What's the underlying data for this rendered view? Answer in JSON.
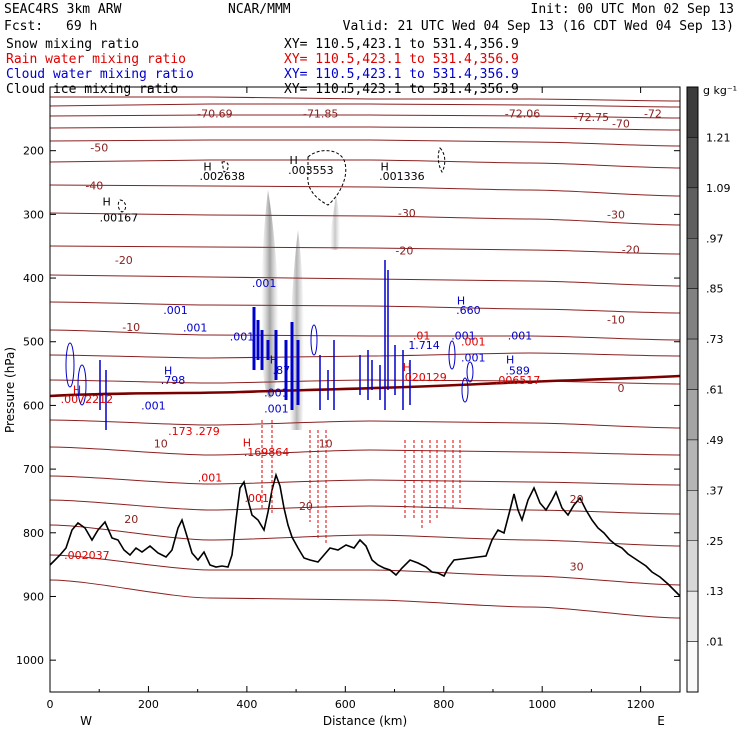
{
  "header": {
    "model": "SEAC4RS  3km ARW",
    "org": "NCAR/MMM",
    "init": "Init: 00 UTC Mon 02 Sep 13",
    "fcst_label": "Fcst:",
    "fcst_value": "69 h",
    "valid": "Valid: 21 UTC Wed 04 Sep 13 (16 CDT Wed 04 Sep 13)"
  },
  "fields": [
    {
      "name": "Snow mixing ratio",
      "xy": "XY= 110.5,423.1 to 531.4,356.9",
      "color": "#000000"
    },
    {
      "name": "Rain water mixing ratio",
      "xy": "XY= 110.5,423.1 to 531.4,356.9",
      "color": "#e00000"
    },
    {
      "name": "Cloud water mixing ratio",
      "xy": "XY= 110.5,423.1 to 531.4,356.9",
      "color": "#0000cc"
    },
    {
      "name": "Cloud ice mixing ratio",
      "xy": "XY= 110.5,423.1 to 531.4,356.9",
      "color": "#000000"
    }
  ],
  "chart_data": {
    "type": "cross-section",
    "xlabel": "Distance (km)",
    "ylabel": "Pressure (hPa)",
    "xlim": [
      0,
      1280
    ],
    "ylim": [
      1050,
      100
    ],
    "x_ticks": [
      "0",
      "200",
      "400",
      "600",
      "800",
      "1000",
      "1200"
    ],
    "y_ticks": [
      "200",
      "300",
      "400",
      "500",
      "600",
      "700",
      "800",
      "900",
      "1000"
    ],
    "left_end": "W",
    "right_end": "E",
    "colorbar": {
      "unit": "g kg⁻¹",
      "ticks": [
        "1.21",
        "1.09",
        ".97",
        ".85",
        ".73",
        ".61",
        ".49",
        ".37",
        ".25",
        ".13",
        ".01"
      ]
    },
    "temperature_labels": [
      {
        "text": "-50",
        "x": 100,
        "p": 195
      },
      {
        "text": "-40",
        "x": 90,
        "p": 255
      },
      {
        "text": "-30",
        "x": 725,
        "p": 298
      },
      {
        "text": "-30",
        "x": 1150,
        "p": 300
      },
      {
        "text": "-20",
        "x": 150,
        "p": 372
      },
      {
        "text": "-20",
        "x": 720,
        "p": 357
      },
      {
        "text": "-20",
        "x": 1180,
        "p": 355
      },
      {
        "text": "-10",
        "x": 165,
        "p": 477
      },
      {
        "text": "-10",
        "x": 1150,
        "p": 465
      },
      {
        "text": "0",
        "x": 1160,
        "p": 573
      },
      {
        "text": "10",
        "x": 225,
        "p": 660
      },
      {
        "text": "10",
        "x": 560,
        "p": 660
      },
      {
        "text": "20",
        "x": 165,
        "p": 778
      },
      {
        "text": "20",
        "x": 520,
        "p": 758
      },
      {
        "text": "20",
        "x": 1070,
        "p": 747
      },
      {
        "text": "30",
        "x": 1070,
        "p": 853
      },
      {
        "text": "-70",
        "x": 1160,
        "p": 157
      },
      {
        "text": "-72.75",
        "x": 1100,
        "p": 147
      },
      {
        "text": "-72",
        "x": 1225,
        "p": 142
      },
      {
        "text": "-70.69",
        "x": 335,
        "p": 142
      },
      {
        "text": "-71.85",
        "x": 550,
        "p": 142
      },
      {
        "text": "-72.06",
        "x": 960,
        "p": 142
      }
    ],
    "max_labels": [
      {
        "text": "H",
        "x": 115,
        "p": 280,
        "color": "#000000"
      },
      {
        "text": ".00167",
        "x": 140,
        "p": 305,
        "color": "#000000"
      },
      {
        "text": "H",
        "x": 320,
        "p": 225,
        "color": "#000000"
      },
      {
        "text": ".002638",
        "x": 350,
        "p": 240,
        "color": "#000000"
      },
      {
        "text": "H",
        "x": 495,
        "p": 215,
        "color": "#000000"
      },
      {
        "text": ".003553",
        "x": 530,
        "p": 230,
        "color": "#000000"
      },
      {
        "text": "H",
        "x": 680,
        "p": 225,
        "color": "#000000"
      },
      {
        "text": ".001336",
        "x": 715,
        "p": 240,
        "color": "#000000"
      },
      {
        "text": "H",
        "x": 55,
        "p": 575,
        "color": "#e00000"
      },
      {
        "text": ".0072212",
        "x": 75,
        "p": 590,
        "color": "#e00000"
      },
      {
        "text": ".001",
        "x": 255,
        "p": 450,
        "color": "#0000cc"
      },
      {
        "text": ".001",
        "x": 295,
        "p": 478,
        "color": "#0000cc"
      },
      {
        "text": "H",
        "x": 240,
        "p": 545,
        "color": "#0000cc"
      },
      {
        "text": ".798",
        "x": 250,
        "p": 560,
        "color": "#0000cc"
      },
      {
        "text": ".001",
        "x": 210,
        "p": 600,
        "color": "#0000cc"
      },
      {
        "text": ".001",
        "x": 390,
        "p": 492,
        "color": "#0000cc"
      },
      {
        "text": ".001",
        "x": 435,
        "p": 408,
        "color": "#0000cc"
      },
      {
        "text": "H",
        "x": 455,
        "p": 528,
        "color": "#0000cc"
      },
      {
        "text": ".87",
        "x": 470,
        "p": 544,
        "color": "#0000cc"
      },
      {
        "text": ".001",
        "x": 460,
        "p": 580,
        "color": "#0000cc"
      },
      {
        "text": ".001",
        "x": 460,
        "p": 605,
        "color": "#0000cc"
      },
      {
        "text": ".173",
        "x": 265,
        "p": 640,
        "color": "#e00000"
      },
      {
        "text": ".279",
        "x": 320,
        "p": 640,
        "color": "#e00000"
      },
      {
        "text": "H",
        "x": 400,
        "p": 658,
        "color": "#e00000"
      },
      {
        "text": ".169864",
        "x": 440,
        "p": 673,
        "color": "#e00000"
      },
      {
        "text": ".001",
        "x": 325,
        "p": 713,
        "color": "#e00000"
      },
      {
        "text": ".001",
        "x": 420,
        "p": 745,
        "color": "#e00000"
      },
      {
        "text": ".01",
        "x": 755,
        "p": 490,
        "color": "#e00000"
      },
      {
        "text": "1.714",
        "x": 760,
        "p": 505,
        "color": "#0000cc"
      },
      {
        "text": "H",
        "x": 725,
        "p": 540,
        "color": "#e00000"
      },
      {
        "text": ".020129",
        "x": 760,
        "p": 555,
        "color": "#e00000"
      },
      {
        "text": "H",
        "x": 835,
        "p": 435,
        "color": "#0000cc"
      },
      {
        "text": ".660",
        "x": 850,
        "p": 450,
        "color": "#0000cc"
      },
      {
        "text": ".001",
        "x": 840,
        "p": 490,
        "color": "#0000cc"
      },
      {
        "text": ".001",
        "x": 860,
        "p": 500,
        "color": "#e00000"
      },
      {
        "text": ".001",
        "x": 860,
        "p": 525,
        "color": "#0000cc"
      },
      {
        "text": ".001",
        "x": 955,
        "p": 490,
        "color": "#0000cc"
      },
      {
        "text": "H",
        "x": 935,
        "p": 528,
        "color": "#0000cc"
      },
      {
        "text": ".589",
        "x": 950,
        "p": 545,
        "color": "#0000cc"
      },
      {
        "text": ".006517",
        "x": 950,
        "p": 560,
        "color": "#e00000"
      },
      {
        "text": ".002037",
        "x": 75,
        "p": 835,
        "color": "#e00000"
      }
    ]
  }
}
